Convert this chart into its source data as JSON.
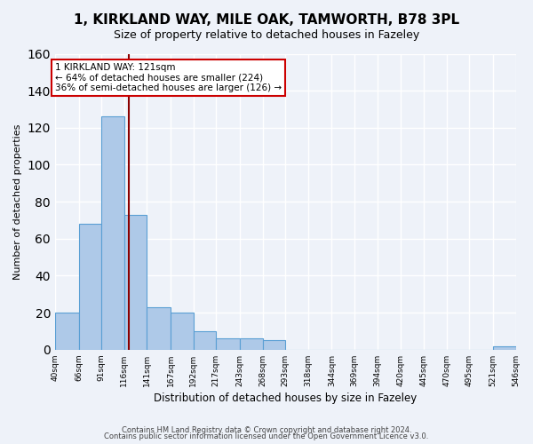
{
  "title": "1, KIRKLAND WAY, MILE OAK, TAMWORTH, B78 3PL",
  "subtitle": "Size of property relative to detached houses in Fazeley",
  "xlabel": "Distribution of detached houses by size in Fazeley",
  "ylabel": "Number of detached properties",
  "bar_edges": [
    40,
    66,
    91,
    116,
    141,
    167,
    192,
    217,
    243,
    268,
    293,
    318,
    344,
    369,
    394,
    420,
    445,
    470,
    495,
    521,
    546
  ],
  "bar_heights": [
    20,
    68,
    126,
    73,
    23,
    20,
    10,
    6,
    6,
    5,
    0,
    0,
    0,
    0,
    0,
    0,
    0,
    0,
    0,
    2
  ],
  "bar_color": "#aec9e8",
  "bar_edge_color": "#5a9fd4",
  "vline_x": 121,
  "vline_color": "#8b0000",
  "ylim": [
    0,
    160
  ],
  "annotation_line1": "1 KIRKLAND WAY: 121sqm",
  "annotation_line2": "← 64% of detached houses are smaller (224)",
  "annotation_line3": "36% of semi-detached houses are larger (126) →",
  "footer_line1": "Contains HM Land Registry data © Crown copyright and database right 2024.",
  "footer_line2": "Contains public sector information licensed under the Open Government Licence v3.0.",
  "tick_labels": [
    "40sqm",
    "66sqm",
    "91sqm",
    "116sqm",
    "141sqm",
    "167sqm",
    "192sqm",
    "217sqm",
    "243sqm",
    "268sqm",
    "293sqm",
    "318sqm",
    "344sqm",
    "369sqm",
    "394sqm",
    "420sqm",
    "445sqm",
    "470sqm",
    "495sqm",
    "521sqm",
    "546sqm"
  ],
  "background_color": "#eef2f9"
}
